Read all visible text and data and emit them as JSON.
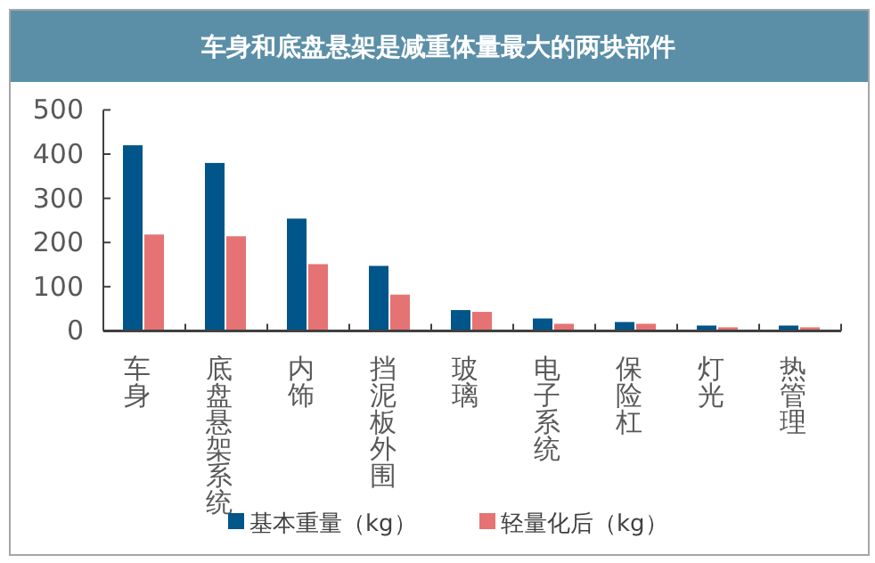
{
  "chart_data": {
    "type": "bar",
    "title": "车身和底盘悬架是减重体量最大的两块部件",
    "categories": [
      "车身",
      "底盘悬架系统",
      "内饰",
      "挡泥板外围",
      "玻璃",
      "电子系统",
      "保险杠",
      "灯光",
      "热管理"
    ],
    "series": [
      {
        "name": "基本重量（kg）",
        "color": "#00558a",
        "values": [
          420,
          380,
          254,
          147,
          47,
          28,
          20,
          12,
          12
        ]
      },
      {
        "name": "轻量化后（kg）",
        "color": "#e57373",
        "values": [
          218,
          214,
          151,
          82,
          43,
          16,
          16,
          8,
          8
        ]
      }
    ],
    "ylim": [
      0,
      500
    ],
    "yticks": [
      0,
      100,
      200,
      300,
      400,
      500
    ],
    "legend": "bottom"
  }
}
